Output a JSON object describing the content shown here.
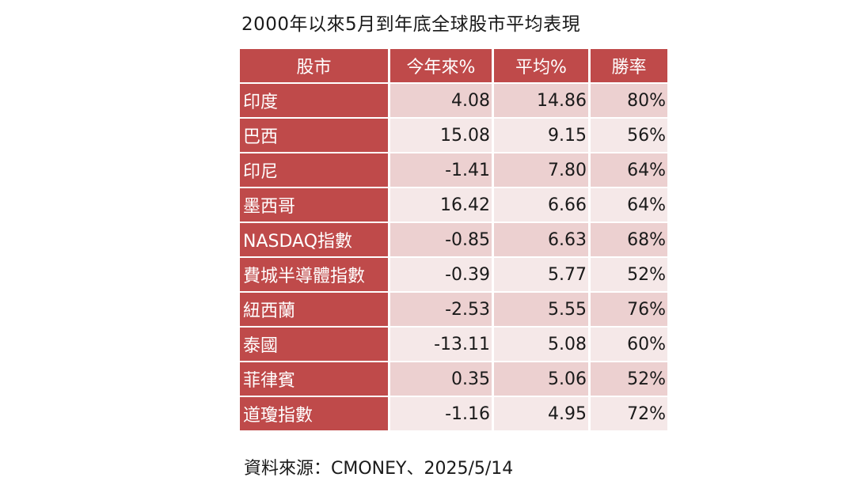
{
  "title": "2000年以來5月到年底全球股市平均表現",
  "table": {
    "headers": [
      "股市",
      "今年來%",
      "平均%",
      "勝率"
    ],
    "rows": [
      {
        "market": "印度",
        "ytd": "4.08",
        "avg": "14.86",
        "win": "80%"
      },
      {
        "market": "巴西",
        "ytd": "15.08",
        "avg": "9.15",
        "win": "56%"
      },
      {
        "market": "印尼",
        "ytd": "-1.41",
        "avg": "7.80",
        "win": "64%"
      },
      {
        "market": "墨西哥",
        "ytd": "16.42",
        "avg": "6.66",
        "win": "64%"
      },
      {
        "market": "NASDAQ指數",
        "ytd": "-0.85",
        "avg": "6.63",
        "win": "68%"
      },
      {
        "market": "費城半導體指數",
        "ytd": "-0.39",
        "avg": "5.77",
        "win": "52%"
      },
      {
        "market": "紐西蘭",
        "ytd": "-2.53",
        "avg": "5.55",
        "win": "76%"
      },
      {
        "market": "泰國",
        "ytd": "-13.11",
        "avg": "5.08",
        "win": "60%"
      },
      {
        "market": "菲律賓",
        "ytd": "0.35",
        "avg": "5.06",
        "win": "52%"
      },
      {
        "market": "道瓊指數",
        "ytd": "-1.16",
        "avg": "4.95",
        "win": "72%"
      }
    ]
  },
  "source": "資料來源：CMONEY、2025/5/14",
  "colors": {
    "header_bg": "#bf4a4a",
    "row_odd_bg": "#ecd0d0",
    "row_even_bg": "#f5e8e8"
  }
}
